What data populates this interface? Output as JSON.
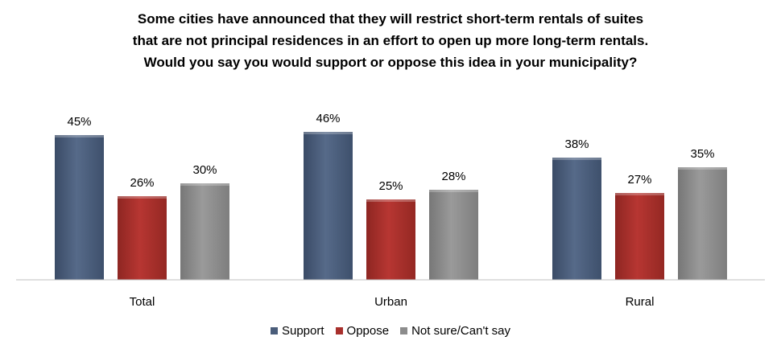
{
  "chart_data": {
    "type": "bar",
    "title_lines": [
      "Some cities have announced that they will restrict short-term rentals of suites",
      "that are not principal residences in an effort to open up more long-term rentals.",
      "Would you say you would support or oppose this idea in your municipality?"
    ],
    "categories": [
      "Total",
      "Urban",
      "Rural"
    ],
    "series": [
      {
        "name": "Support",
        "values": [
          45,
          46,
          38
        ],
        "labels": [
          "45%",
          "46%",
          "38%"
        ],
        "color": "#4a5d7a"
      },
      {
        "name": "Oppose",
        "values": [
          26,
          25,
          27
        ],
        "labels": [
          "26%",
          "25%",
          "27%"
        ],
        "color": "#a8302c"
      },
      {
        "name": "Not sure/Can't say",
        "values": [
          30,
          28,
          35
        ],
        "labels": [
          "30%",
          "28%",
          "35%"
        ],
        "color": "#8c8c8c"
      }
    ],
    "ylim": [
      0,
      50
    ],
    "grid": false,
    "legend_position": "bottom"
  }
}
